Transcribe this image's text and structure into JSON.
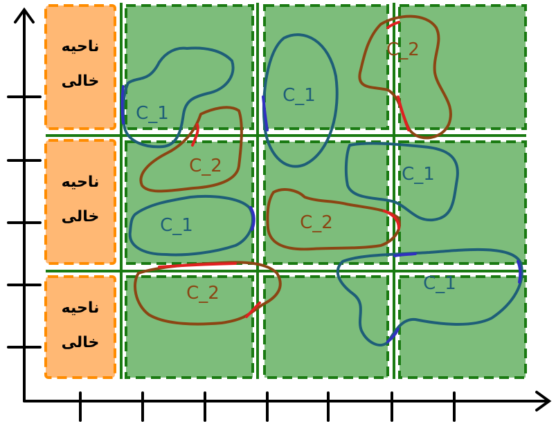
{
  "colors": {
    "empty_fill": "#ffb874",
    "empty_border": "#ff8c00",
    "cell_fill": "#7dbd7b",
    "cell_border": "#1a7a12",
    "grid_line": "#1a7a12",
    "c1_stroke": "#1e5e78",
    "c1_text": "#1e5e78",
    "c2_stroke": "#8b4513",
    "c2_text": "#8b4513",
    "boundary_red": "#e02020",
    "boundary_blue": "#3030c0",
    "axis": "#000000"
  },
  "empty_regions": [
    {
      "line1": "ناحیه",
      "line2": "خالی"
    },
    {
      "line1": "ناحیه",
      "line2": "خالی"
    },
    {
      "line1": "ناحیه",
      "line2": "خالی"
    }
  ],
  "clusters": [
    {
      "label": "C_1"
    },
    {
      "label": "C_1"
    },
    {
      "label": "C_2"
    },
    {
      "label": "C_2"
    },
    {
      "label": "C_1"
    },
    {
      "label": "C_1"
    },
    {
      "label": "C_2"
    },
    {
      "label": "C_2"
    },
    {
      "label": "C_1"
    }
  ]
}
